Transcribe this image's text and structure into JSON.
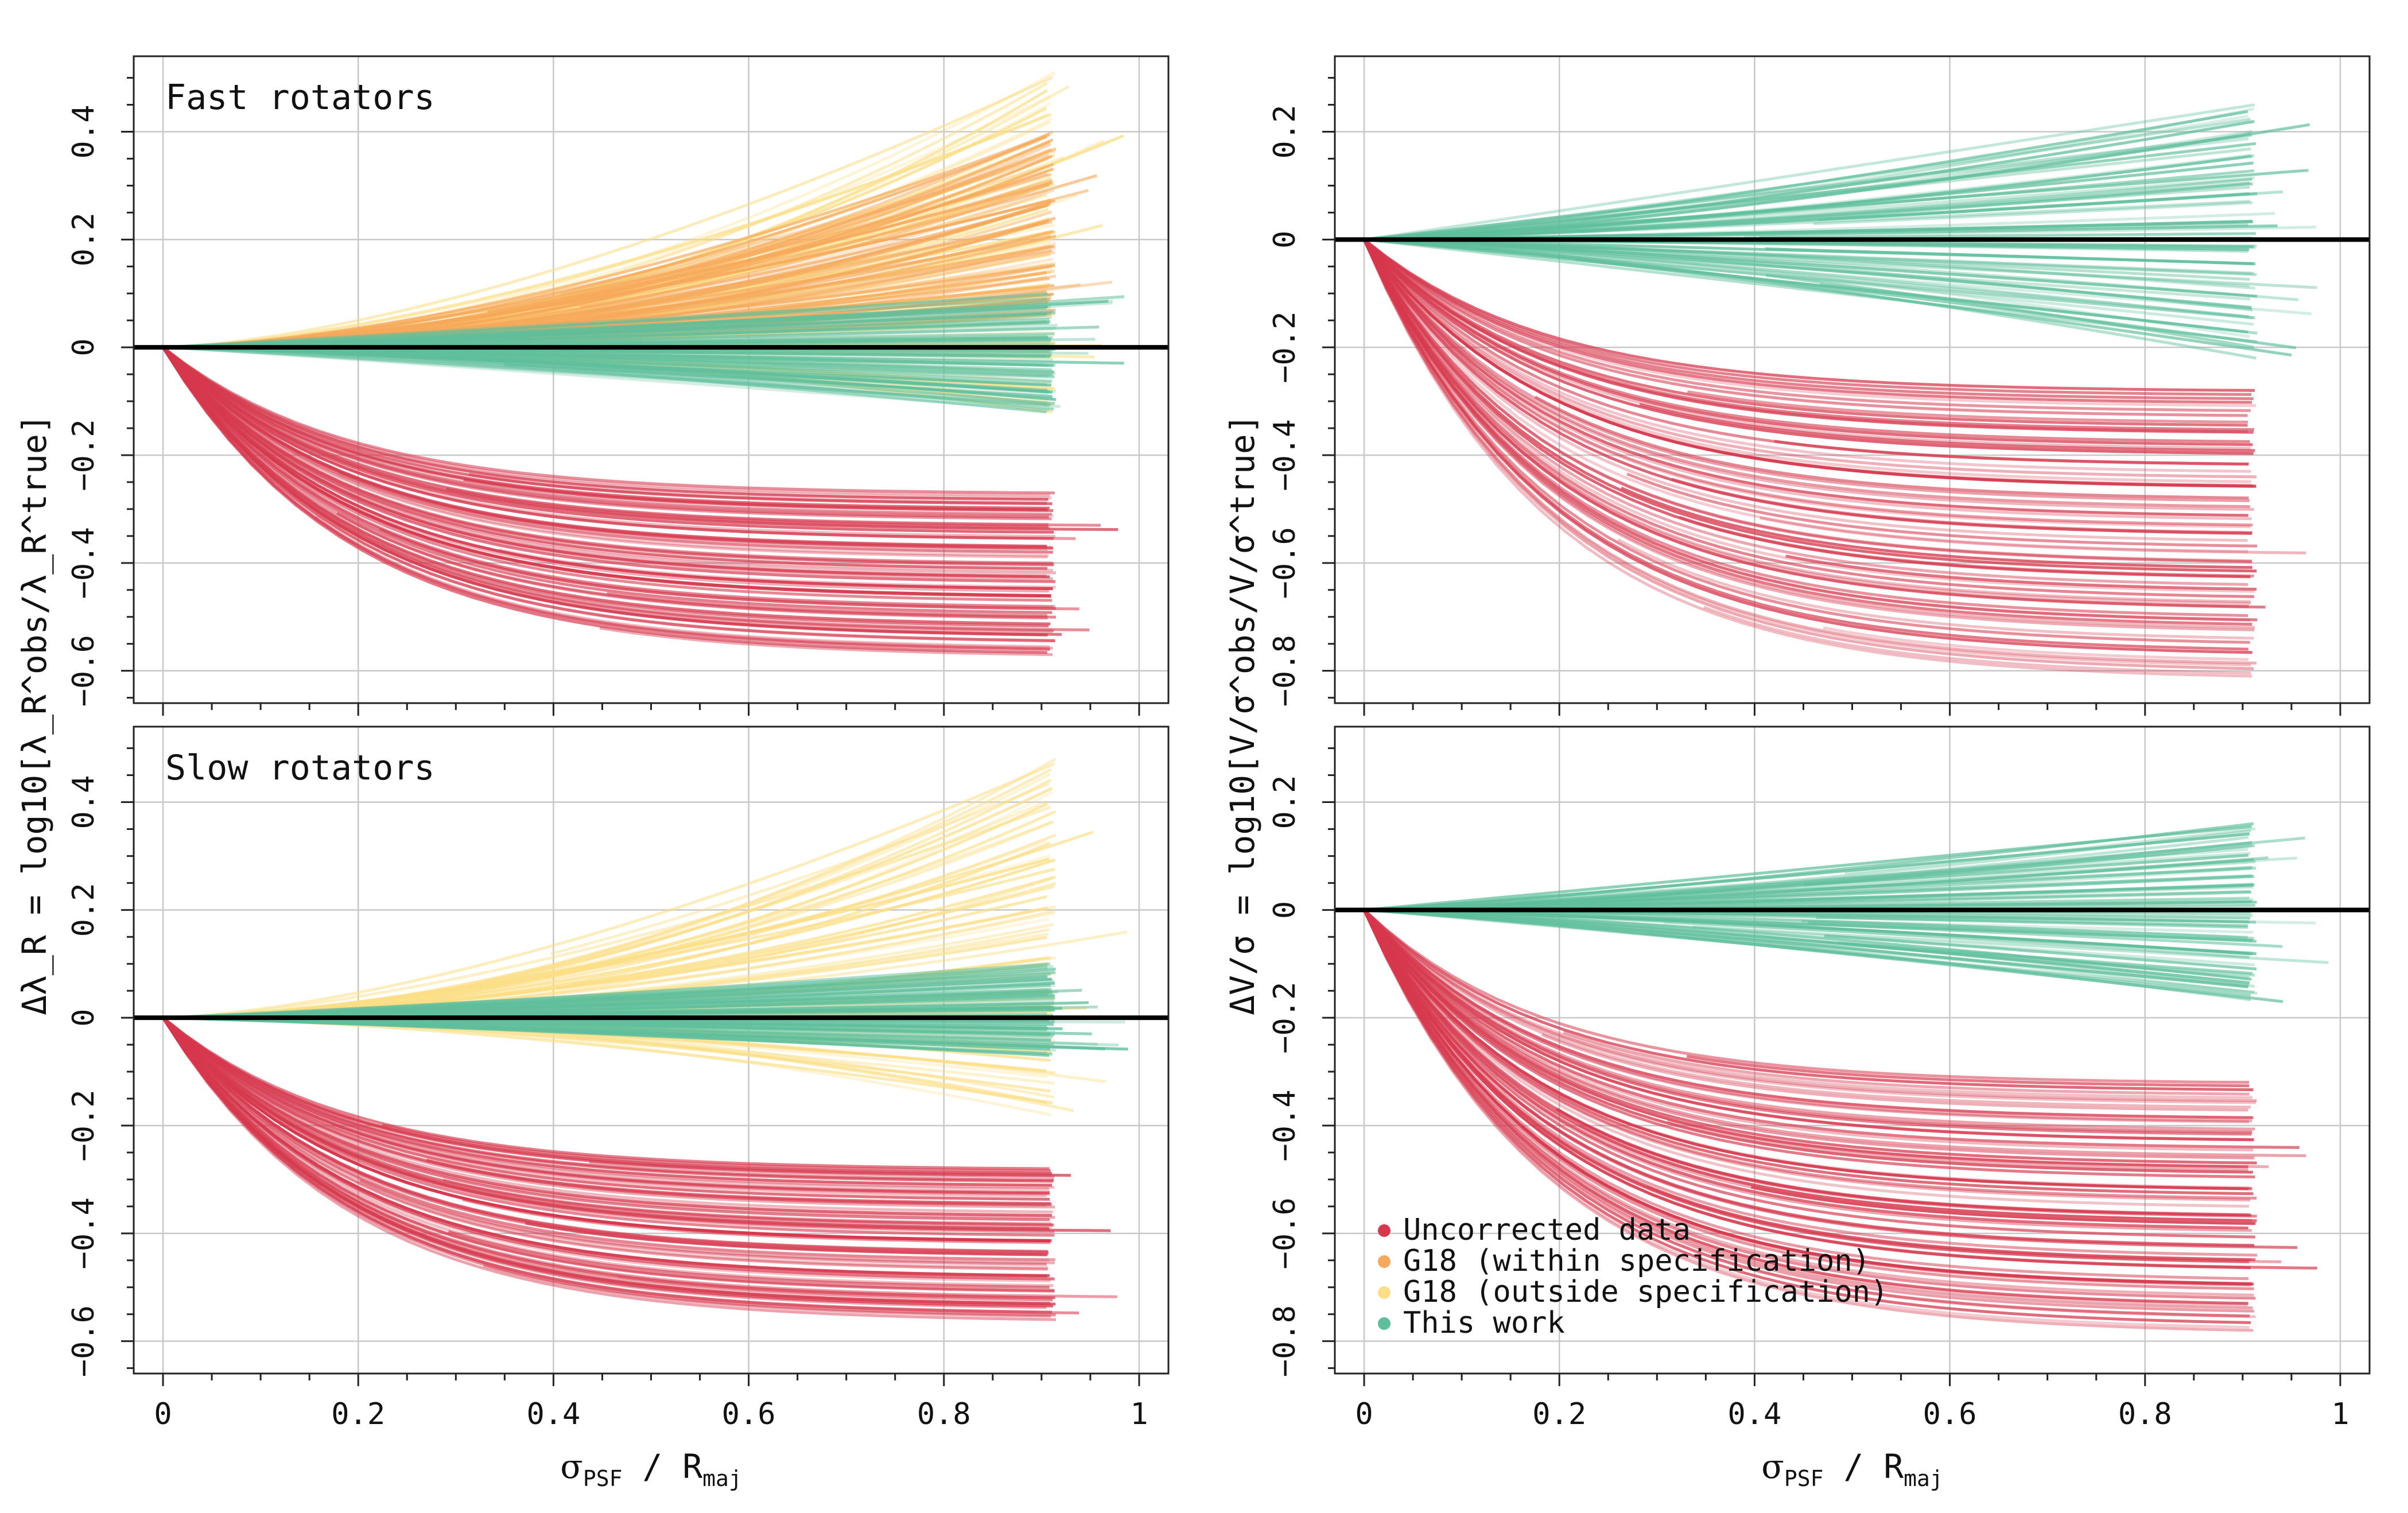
{
  "chart_data": [
    {
      "type": "line",
      "id": "top-left",
      "title": "Fast rotators",
      "x_ticks": [
        "0",
        "0.2",
        "0.4",
        "0.6",
        "0.8",
        "1"
      ],
      "y_ticks": [
        "−0.6",
        "−0.4",
        "−0.2",
        "0",
        "0.2",
        "0.4"
      ],
      "xlim": [
        -0.03,
        1.03
      ],
      "ylim": [
        -0.66,
        0.54
      ],
      "grid": true,
      "reference_line_y": 0,
      "x_end_typical": 0.91,
      "bands": [
        {
          "series": "G18 (outside specification)",
          "color": "#fbde85",
          "final_min": -0.12,
          "final_max": 0.51
        },
        {
          "series": "G18 (within specification)",
          "color": "#f6a95a",
          "final_min": 0.06,
          "final_max": 0.4
        },
        {
          "series": "This work",
          "color": "#5fbf9c",
          "final_min": -0.12,
          "final_max": 0.1
        },
        {
          "series": "Uncorrected data",
          "color": "#d6384d",
          "final_min": -0.57,
          "final_max": -0.27
        }
      ]
    },
    {
      "type": "line",
      "id": "bottom-left",
      "title": "Slow rotators",
      "x_ticks": [
        "0",
        "0.2",
        "0.4",
        "0.6",
        "0.8",
        "1"
      ],
      "y_ticks": [
        "−0.6",
        "−0.4",
        "−0.2",
        "0",
        "0.2",
        "0.4"
      ],
      "xlim": [
        -0.03,
        1.03
      ],
      "ylim": [
        -0.66,
        0.54
      ],
      "grid": true,
      "reference_line_y": 0,
      "x_end_typical": 0.91,
      "bands": [
        {
          "series": "G18 (outside specification)",
          "color": "#fbde85",
          "final_min": -0.18,
          "final_max": 0.48
        },
        {
          "series": "This work",
          "color": "#5fbf9c",
          "final_min": -0.07,
          "final_max": 0.1
        },
        {
          "series": "Uncorrected data",
          "color": "#d6384d",
          "final_min": -0.56,
          "final_max": -0.28
        }
      ]
    },
    {
      "type": "line",
      "id": "top-right",
      "title": "",
      "x_ticks": [
        "0",
        "0.2",
        "0.4",
        "0.6",
        "0.8",
        "1"
      ],
      "y_ticks": [
        "−0.8",
        "−0.6",
        "−0.4",
        "−0.2",
        "0",
        "0.2"
      ],
      "xlim": [
        -0.03,
        1.03
      ],
      "ylim": [
        -0.86,
        0.34
      ],
      "grid": true,
      "reference_line_y": 0,
      "x_end_typical": 0.91,
      "bands": [
        {
          "series": "This work",
          "color": "#5fbf9c",
          "final_min": -0.22,
          "final_max": 0.25
        },
        {
          "series": "Uncorrected data",
          "color": "#d6384d",
          "final_min": -0.81,
          "final_max": -0.28
        }
      ]
    },
    {
      "type": "line",
      "id": "bottom-right",
      "title": "",
      "x_ticks": [
        "0",
        "0.2",
        "0.4",
        "0.6",
        "0.8",
        "1"
      ],
      "y_ticks": [
        "−0.8",
        "−0.6",
        "−0.4",
        "−0.2",
        "0",
        "0.2"
      ],
      "xlim": [
        -0.03,
        1.03
      ],
      "ylim": [
        -0.86,
        0.34
      ],
      "grid": true,
      "reference_line_y": 0,
      "x_end_typical": 0.91,
      "bands": [
        {
          "series": "This work",
          "color": "#5fbf9c",
          "final_min": -0.17,
          "final_max": 0.16
        },
        {
          "series": "Uncorrected data",
          "color": "#d6384d",
          "final_min": -0.78,
          "final_max": -0.32
        }
      ]
    }
  ],
  "axes": {
    "x_label_main": "σ",
    "x_label_sub1": "PSF",
    "x_label_mid": " / R",
    "x_label_sub2": "maj",
    "left_y_label": "Δλ_R = log10[λ_R^obs/λ_R^true]",
    "right_y_label": "ΔV/σ = log10[V/σ^obs/V/σ^true]"
  },
  "legend": {
    "placement": "bottom-left of bottom-right panel",
    "entries": [
      {
        "label": "Uncorrected data",
        "color": "#d6384d"
      },
      {
        "label": "G18 (within specification)",
        "color": "#f6a95a"
      },
      {
        "label": "G18 (outside specification)",
        "color": "#fbde85"
      },
      {
        "label": "This work",
        "color": "#5fbf9c"
      }
    ]
  }
}
